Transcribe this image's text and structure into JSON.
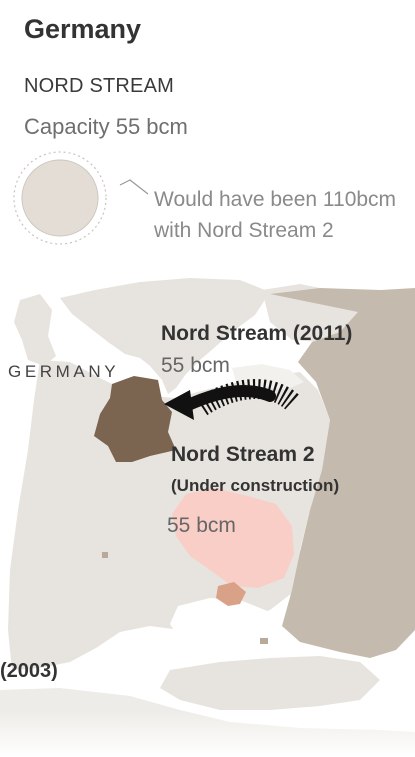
{
  "header": {
    "title": "Germany",
    "section_label": "NORD STREAM",
    "capacity_text": "Capacity 55 bcm",
    "note_line1": "Would have been 110bcm",
    "note_line2": "with Nord Stream 2"
  },
  "map": {
    "country_label": "GERMANY",
    "nord_stream_1": {
      "name": "Nord Stream (2011)",
      "capacity": "55 bcm"
    },
    "nord_stream_2": {
      "name": "Nord Stream 2",
      "status": "(Under construction)",
      "capacity": "55 bcm"
    },
    "pipeline_label_partial": "(2003)"
  },
  "colors": {
    "land": "#e7e4df",
    "russia": "#c5baae",
    "germany": "#7b6450",
    "ukraine": "#f9cec7",
    "crimea": "#d9a288",
    "capacity_circle": "#e3ddd5",
    "pipeline": "#111111"
  }
}
